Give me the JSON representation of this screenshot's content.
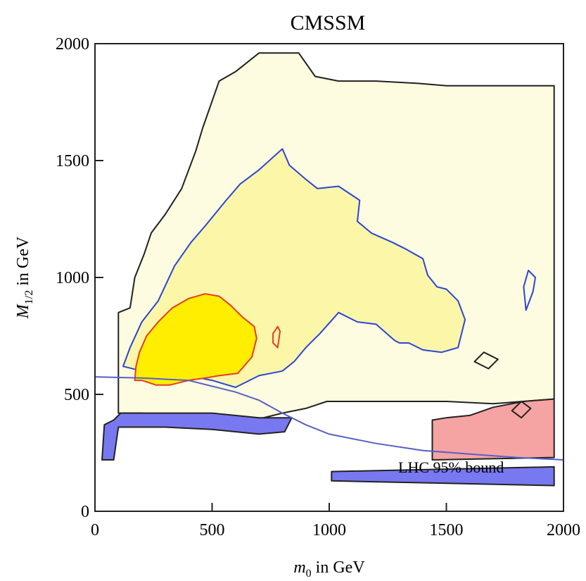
{
  "chart_data": {
    "type": "contour",
    "title": "CMSSM",
    "xlabel": "m0 in GeV",
    "ylabel": "M1/2 in GeV",
    "x_axis": {
      "symbol": "m",
      "subscript": "0",
      "unit_text": " in GeV"
    },
    "y_axis": {
      "symbol": "M",
      "subscript": "1/2",
      "unit_text": " in GeV"
    },
    "xlim": [
      0,
      2000
    ],
    "ylim": [
      0,
      2000
    ],
    "xticks": [
      0,
      500,
      1000,
      1500,
      2000
    ],
    "yticks": [
      0,
      500,
      1000,
      1500,
      2000
    ],
    "x_tick_labels": [
      "0",
      "500",
      "1000",
      "1500",
      "2000"
    ],
    "y_tick_labels": [
      "0",
      "500",
      "1000",
      "1500",
      "2000"
    ],
    "grid": false,
    "colors": {
      "outer_region": "#fdfbe0",
      "mid_region": "#fcf7a8",
      "inner_region": "#ffee00",
      "outer_contour": "#222222",
      "mid_contour": "#2b45d6",
      "inner_contour": "#e83a2a",
      "pink_region": "#f5a3a3",
      "blue_region": "#7878f0",
      "lhc_curve": "#5560c8"
    },
    "regions": [
      {
        "name": "outer",
        "fill": "#fdfbe0",
        "stroke": "#222222",
        "points": [
          [
            100,
            420
          ],
          [
            100,
            850
          ],
          [
            150,
            870
          ],
          [
            170,
            1000
          ],
          [
            210,
            1100
          ],
          [
            240,
            1190
          ],
          [
            300,
            1270
          ],
          [
            370,
            1380
          ],
          [
            430,
            1540
          ],
          [
            460,
            1640
          ],
          [
            530,
            1840
          ],
          [
            600,
            1880
          ],
          [
            700,
            1960
          ],
          [
            870,
            1960
          ],
          [
            940,
            1860
          ],
          [
            1040,
            1840
          ],
          [
            1200,
            1840
          ],
          [
            1380,
            1830
          ],
          [
            1500,
            1820
          ],
          [
            1700,
            1820
          ],
          [
            1960,
            1820
          ],
          [
            1960,
            480
          ],
          [
            1700,
            460
          ],
          [
            1500,
            470
          ],
          [
            1300,
            470
          ],
          [
            1100,
            470
          ],
          [
            990,
            470
          ],
          [
            900,
            440
          ],
          [
            800,
            420
          ],
          [
            700,
            395
          ],
          [
            500,
            410
          ],
          [
            300,
            410
          ],
          [
            200,
            420
          ]
        ]
      },
      {
        "name": "pink",
        "fill": "#f5a3a3",
        "stroke": "#222222",
        "points": [
          [
            1440,
            220
          ],
          [
            1960,
            230
          ],
          [
            1960,
            480
          ],
          [
            1830,
            470
          ],
          [
            1700,
            445
          ],
          [
            1600,
            410
          ],
          [
            1500,
            400
          ],
          [
            1440,
            390
          ]
        ]
      },
      {
        "name": "mid",
        "fill": "#fcf7a8",
        "stroke": "#2b45d6",
        "points": [
          [
            120,
            620
          ],
          [
            150,
            700
          ],
          [
            200,
            810
          ],
          [
            270,
            900
          ],
          [
            340,
            1050
          ],
          [
            410,
            1150
          ],
          [
            470,
            1220
          ],
          [
            560,
            1330
          ],
          [
            620,
            1400
          ],
          [
            700,
            1460
          ],
          [
            800,
            1550
          ],
          [
            830,
            1480
          ],
          [
            900,
            1420
          ],
          [
            950,
            1380
          ],
          [
            1040,
            1390
          ],
          [
            1130,
            1330
          ],
          [
            1120,
            1240
          ],
          [
            1180,
            1190
          ],
          [
            1270,
            1150
          ],
          [
            1330,
            1120
          ],
          [
            1400,
            1080
          ],
          [
            1420,
            1010
          ],
          [
            1460,
            960
          ],
          [
            1500,
            950
          ],
          [
            1550,
            900
          ],
          [
            1580,
            820
          ],
          [
            1550,
            700
          ],
          [
            1480,
            680
          ],
          [
            1400,
            690
          ],
          [
            1340,
            720
          ],
          [
            1300,
            720
          ],
          [
            1280,
            730
          ],
          [
            1200,
            800
          ],
          [
            1120,
            810
          ],
          [
            1040,
            850
          ],
          [
            960,
            760
          ],
          [
            900,
            700
          ],
          [
            850,
            640
          ],
          [
            800,
            600
          ],
          [
            700,
            580
          ],
          [
            640,
            550
          ],
          [
            600,
            530
          ],
          [
            500,
            560
          ],
          [
            400,
            580
          ],
          [
            300,
            590
          ],
          [
            200,
            600
          ]
        ]
      },
      {
        "name": "inner",
        "fill": "#ffee00",
        "stroke": "#e83a2a",
        "points": [
          [
            170,
            560
          ],
          [
            175,
            620
          ],
          [
            190,
            680
          ],
          [
            220,
            750
          ],
          [
            270,
            810
          ],
          [
            330,
            870
          ],
          [
            400,
            910
          ],
          [
            470,
            930
          ],
          [
            530,
            920
          ],
          [
            580,
            880
          ],
          [
            630,
            830
          ],
          [
            680,
            790
          ],
          [
            690,
            740
          ],
          [
            670,
            660
          ],
          [
            610,
            590
          ],
          [
            530,
            580
          ],
          [
            470,
            570
          ],
          [
            400,
            560
          ],
          [
            320,
            540
          ],
          [
            260,
            540
          ],
          [
            200,
            560
          ]
        ]
      },
      {
        "name": "blue-left",
        "fill": "#7878f0",
        "stroke": "#222222",
        "points": [
          [
            30,
            220
          ],
          [
            80,
            220
          ],
          [
            100,
            360
          ],
          [
            300,
            360
          ],
          [
            500,
            350
          ],
          [
            700,
            330
          ],
          [
            810,
            340
          ],
          [
            840,
            400
          ],
          [
            700,
            400
          ],
          [
            500,
            420
          ],
          [
            300,
            420
          ],
          [
            110,
            420
          ],
          [
            80,
            390
          ],
          [
            40,
            370
          ]
        ]
      },
      {
        "name": "blue-bottom",
        "fill": "#7878f0",
        "stroke": "#222222",
        "points": [
          [
            1010,
            130
          ],
          [
            1960,
            110
          ],
          [
            1960,
            190
          ],
          [
            1010,
            170
          ]
        ]
      },
      {
        "name": "blue-island",
        "fill": "none",
        "stroke": "#2b45d6",
        "points": [
          [
            1850,
            1030
          ],
          [
            1880,
            1000
          ],
          [
            1870,
            940
          ],
          [
            1840,
            860
          ],
          [
            1830,
            960
          ]
        ]
      },
      {
        "name": "small-red",
        "fill": "none",
        "stroke": "#e83a2a",
        "points": [
          [
            760,
            760
          ],
          [
            780,
            790
          ],
          [
            790,
            770
          ],
          [
            780,
            700
          ],
          [
            760,
            720
          ]
        ]
      },
      {
        "name": "outer-island",
        "fill": "none",
        "stroke": "#222222",
        "points": [
          [
            1620,
            640
          ],
          [
            1660,
            680
          ],
          [
            1720,
            650
          ],
          [
            1680,
            610
          ]
        ]
      },
      {
        "name": "diamond",
        "fill": "none",
        "stroke": "#222222",
        "points": [
          [
            1780,
            430
          ],
          [
            1820,
            470
          ],
          [
            1860,
            440
          ],
          [
            1820,
            400
          ]
        ]
      }
    ],
    "lhc_curve_points": [
      [
        0,
        575
      ],
      [
        200,
        570
      ],
      [
        400,
        560
      ],
      [
        600,
        510
      ],
      [
        700,
        475
      ],
      [
        800,
        420
      ],
      [
        900,
        370
      ],
      [
        1000,
        330
      ],
      [
        1200,
        290
      ],
      [
        1400,
        260
      ],
      [
        1600,
        245
      ],
      [
        1800,
        230
      ],
      [
        2000,
        220
      ]
    ],
    "annotation": "LHC 95% bound"
  }
}
